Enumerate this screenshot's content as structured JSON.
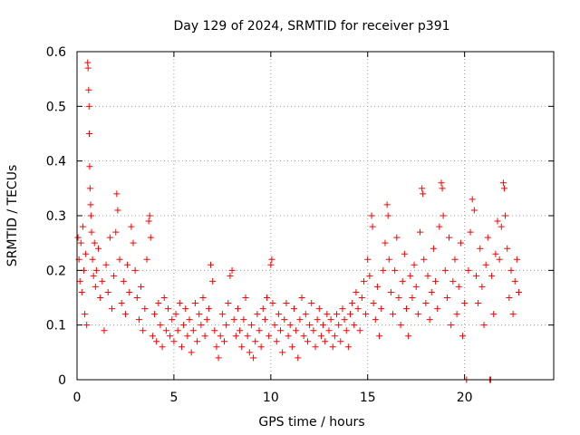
{
  "chart_data": {
    "type": "scatter",
    "title": "Day 129 of 2024, SRMTID for receiver p391",
    "xlabel": "GPS time / hours",
    "ylabel": "SRMTID / TECUs",
    "xlim": [
      0,
      24.6
    ],
    "ylim": [
      0,
      0.6
    ],
    "x_ticks": [
      0,
      5,
      10,
      15,
      20
    ],
    "y_ticks": [
      0,
      0.1,
      0.2,
      0.3,
      0.4,
      0.5,
      0.6
    ],
    "x_tick_labels": [
      "0",
      "5",
      "10",
      "15",
      "20"
    ],
    "y_tick_labels": [
      "0",
      "0.1",
      "0.2",
      "0.3",
      "0.4",
      "0.5",
      "0.6"
    ],
    "grid": true,
    "marker": "+",
    "color": "#ff0000",
    "series": [
      {
        "name": "SRMTID",
        "points": [
          [
            0.05,
            0.26
          ],
          [
            0.1,
            0.22
          ],
          [
            0.15,
            0.18
          ],
          [
            0.2,
            0.25
          ],
          [
            0.25,
            0.16
          ],
          [
            0.3,
            0.28
          ],
          [
            0.35,
            0.2
          ],
          [
            0.4,
            0.12
          ],
          [
            0.45,
            0.23
          ],
          [
            0.5,
            0.1
          ],
          [
            0.55,
            0.58
          ],
          [
            0.57,
            0.57
          ],
          [
            0.6,
            0.53
          ],
          [
            0.62,
            0.5
          ],
          [
            0.63,
            0.45
          ],
          [
            0.65,
            0.39
          ],
          [
            0.67,
            0.35
          ],
          [
            0.7,
            0.32
          ],
          [
            0.72,
            0.3
          ],
          [
            0.75,
            0.27
          ],
          [
            0.8,
            0.22
          ],
          [
            0.85,
            0.19
          ],
          [
            0.9,
            0.25
          ],
          [
            0.95,
            0.17
          ],
          [
            1.0,
            0.2
          ],
          [
            1.1,
            0.24
          ],
          [
            1.2,
            0.15
          ],
          [
            1.3,
            0.18
          ],
          [
            1.4,
            0.09
          ],
          [
            1.5,
            0.21
          ],
          [
            1.6,
            0.16
          ],
          [
            1.7,
            0.26
          ],
          [
            1.8,
            0.13
          ],
          [
            1.9,
            0.19
          ],
          [
            2.0,
            0.27
          ],
          [
            2.05,
            0.34
          ],
          [
            2.1,
            0.31
          ],
          [
            2.2,
            0.22
          ],
          [
            2.3,
            0.14
          ],
          [
            2.4,
            0.18
          ],
          [
            2.5,
            0.12
          ],
          [
            2.6,
            0.21
          ],
          [
            2.7,
            0.16
          ],
          [
            2.8,
            0.28
          ],
          [
            2.9,
            0.25
          ],
          [
            3.0,
            0.2
          ],
          [
            3.1,
            0.15
          ],
          [
            3.2,
            0.11
          ],
          [
            3.3,
            0.17
          ],
          [
            3.4,
            0.09
          ],
          [
            3.5,
            0.13
          ],
          [
            3.6,
            0.22
          ],
          [
            3.7,
            0.29
          ],
          [
            3.75,
            0.3
          ],
          [
            3.8,
            0.26
          ],
          [
            3.9,
            0.08
          ],
          [
            4.0,
            0.12
          ],
          [
            4.1,
            0.07
          ],
          [
            4.2,
            0.14
          ],
          [
            4.3,
            0.1
          ],
          [
            4.4,
            0.06
          ],
          [
            4.5,
            0.15
          ],
          [
            4.6,
            0.09
          ],
          [
            4.7,
            0.13
          ],
          [
            4.8,
            0.08
          ],
          [
            4.9,
            0.11
          ],
          [
            5.0,
            0.07
          ],
          [
            5.1,
            0.12
          ],
          [
            5.2,
            0.09
          ],
          [
            5.3,
            0.14
          ],
          [
            5.4,
            0.06
          ],
          [
            5.5,
            0.1
          ],
          [
            5.6,
            0.13
          ],
          [
            5.7,
            0.08
          ],
          [
            5.8,
            0.11
          ],
          [
            5.9,
            0.05
          ],
          [
            6.0,
            0.09
          ],
          [
            6.1,
            0.14
          ],
          [
            6.2,
            0.07
          ],
          [
            6.3,
            0.12
          ],
          [
            6.4,
            0.1
          ],
          [
            6.5,
            0.15
          ],
          [
            6.6,
            0.08
          ],
          [
            6.7,
            0.11
          ],
          [
            6.8,
            0.13
          ],
          [
            6.9,
            0.21
          ],
          [
            7.0,
            0.18
          ],
          [
            7.1,
            0.09
          ],
          [
            7.2,
            0.06
          ],
          [
            7.3,
            0.04
          ],
          [
            7.4,
            0.08
          ],
          [
            7.5,
            0.12
          ],
          [
            7.6,
            0.07
          ],
          [
            7.7,
            0.1
          ],
          [
            7.8,
            0.14
          ],
          [
            7.9,
            0.19
          ],
          [
            8.0,
            0.2
          ],
          [
            8.1,
            0.11
          ],
          [
            8.2,
            0.08
          ],
          [
            8.3,
            0.13
          ],
          [
            8.4,
            0.09
          ],
          [
            8.5,
            0.06
          ],
          [
            8.6,
            0.11
          ],
          [
            8.7,
            0.15
          ],
          [
            8.8,
            0.08
          ],
          [
            8.9,
            0.05
          ],
          [
            9.0,
            0.1
          ],
          [
            9.1,
            0.04
          ],
          [
            9.2,
            0.07
          ],
          [
            9.3,
            0.12
          ],
          [
            9.4,
            0.09
          ],
          [
            9.5,
            0.06
          ],
          [
            9.6,
            0.13
          ],
          [
            9.7,
            0.11
          ],
          [
            9.8,
            0.15
          ],
          [
            9.9,
            0.08
          ],
          [
            10.0,
            0.21
          ],
          [
            10.05,
            0.22
          ],
          [
            10.1,
            0.14
          ],
          [
            10.2,
            0.1
          ],
          [
            10.3,
            0.07
          ],
          [
            10.4,
            0.12
          ],
          [
            10.5,
            0.09
          ],
          [
            10.6,
            0.05
          ],
          [
            10.7,
            0.11
          ],
          [
            10.8,
            0.14
          ],
          [
            10.9,
            0.08
          ],
          [
            11.0,
            0.1
          ],
          [
            11.1,
            0.06
          ],
          [
            11.2,
            0.13
          ],
          [
            11.3,
            0.09
          ],
          [
            11.4,
            0.04
          ],
          [
            11.5,
            0.11
          ],
          [
            11.6,
            0.15
          ],
          [
            11.7,
            0.08
          ],
          [
            11.8,
            0.12
          ],
          [
            11.9,
            0.07
          ],
          [
            12.0,
            0.1
          ],
          [
            12.1,
            0.14
          ],
          [
            12.2,
            0.09
          ],
          [
            12.3,
            0.06
          ],
          [
            12.4,
            0.11
          ],
          [
            12.5,
            0.13
          ],
          [
            12.6,
            0.08
          ],
          [
            12.7,
            0.1
          ],
          [
            12.8,
            0.07
          ],
          [
            12.9,
            0.12
          ],
          [
            13.0,
            0.09
          ],
          [
            13.1,
            0.11
          ],
          [
            13.2,
            0.06
          ],
          [
            13.3,
            0.08
          ],
          [
            13.4,
            0.12
          ],
          [
            13.5,
            0.1
          ],
          [
            13.6,
            0.07
          ],
          [
            13.7,
            0.13
          ],
          [
            13.8,
            0.11
          ],
          [
            13.9,
            0.09
          ],
          [
            14.0,
            0.06
          ],
          [
            14.1,
            0.12
          ],
          [
            14.2,
            0.14
          ],
          [
            14.3,
            0.1
          ],
          [
            14.4,
            0.16
          ],
          [
            14.5,
            0.13
          ],
          [
            14.6,
            0.09
          ],
          [
            14.7,
            0.15
          ],
          [
            14.8,
            0.18
          ],
          [
            14.9,
            0.12
          ],
          [
            15.0,
            0.22
          ],
          [
            15.1,
            0.19
          ],
          [
            15.2,
            0.3
          ],
          [
            15.25,
            0.28
          ],
          [
            15.3,
            0.14
          ],
          [
            15.4,
            0.11
          ],
          [
            15.5,
            0.17
          ],
          [
            15.6,
            0.08
          ],
          [
            15.7,
            0.13
          ],
          [
            15.8,
            0.2
          ],
          [
            15.9,
            0.25
          ],
          [
            16.0,
            0.32
          ],
          [
            16.05,
            0.3
          ],
          [
            16.1,
            0.22
          ],
          [
            16.2,
            0.16
          ],
          [
            16.3,
            0.12
          ],
          [
            16.4,
            0.2
          ],
          [
            16.5,
            0.26
          ],
          [
            16.6,
            0.15
          ],
          [
            16.7,
            0.1
          ],
          [
            16.8,
            0.18
          ],
          [
            16.9,
            0.23
          ],
          [
            17.0,
            0.13
          ],
          [
            17.1,
            0.08
          ],
          [
            17.2,
            0.19
          ],
          [
            17.3,
            0.15
          ],
          [
            17.4,
            0.21
          ],
          [
            17.5,
            0.17
          ],
          [
            17.6,
            0.12
          ],
          [
            17.7,
            0.27
          ],
          [
            17.8,
            0.35
          ],
          [
            17.85,
            0.34
          ],
          [
            17.9,
            0.22
          ],
          [
            18.0,
            0.14
          ],
          [
            18.1,
            0.19
          ],
          [
            18.2,
            0.11
          ],
          [
            18.3,
            0.16
          ],
          [
            18.4,
            0.24
          ],
          [
            18.5,
            0.18
          ],
          [
            18.6,
            0.13
          ],
          [
            18.7,
            0.28
          ],
          [
            18.8,
            0.36
          ],
          [
            18.85,
            0.35
          ],
          [
            18.9,
            0.3
          ],
          [
            19.0,
            0.2
          ],
          [
            19.1,
            0.15
          ],
          [
            19.2,
            0.26
          ],
          [
            19.3,
            0.1
          ],
          [
            19.4,
            0.18
          ],
          [
            19.5,
            0.22
          ],
          [
            19.6,
            0.12
          ],
          [
            19.7,
            0.17
          ],
          [
            19.8,
            0.25
          ],
          [
            19.9,
            0.08
          ],
          [
            20.0,
            0.14
          ],
          [
            20.1,
            0.0
          ],
          [
            20.2,
            0.2
          ],
          [
            20.3,
            0.27
          ],
          [
            20.4,
            0.33
          ],
          [
            20.5,
            0.31
          ],
          [
            20.6,
            0.19
          ],
          [
            20.7,
            0.14
          ],
          [
            20.8,
            0.24
          ],
          [
            20.9,
            0.17
          ],
          [
            21.0,
            0.1
          ],
          [
            21.1,
            0.21
          ],
          [
            21.2,
            0.26
          ],
          [
            21.3,
            0.0
          ],
          [
            21.35,
            0.0
          ],
          [
            21.4,
            0.19
          ],
          [
            21.5,
            0.12
          ],
          [
            21.6,
            0.23
          ],
          [
            21.7,
            0.29
          ],
          [
            21.8,
            0.22
          ],
          [
            21.9,
            0.28
          ],
          [
            22.0,
            0.36
          ],
          [
            22.05,
            0.35
          ],
          [
            22.1,
            0.3
          ],
          [
            22.2,
            0.24
          ],
          [
            22.3,
            0.15
          ],
          [
            22.4,
            0.2
          ],
          [
            22.5,
            0.12
          ],
          [
            22.6,
            0.18
          ],
          [
            22.7,
            0.22
          ],
          [
            22.8,
            0.16
          ]
        ]
      }
    ]
  }
}
